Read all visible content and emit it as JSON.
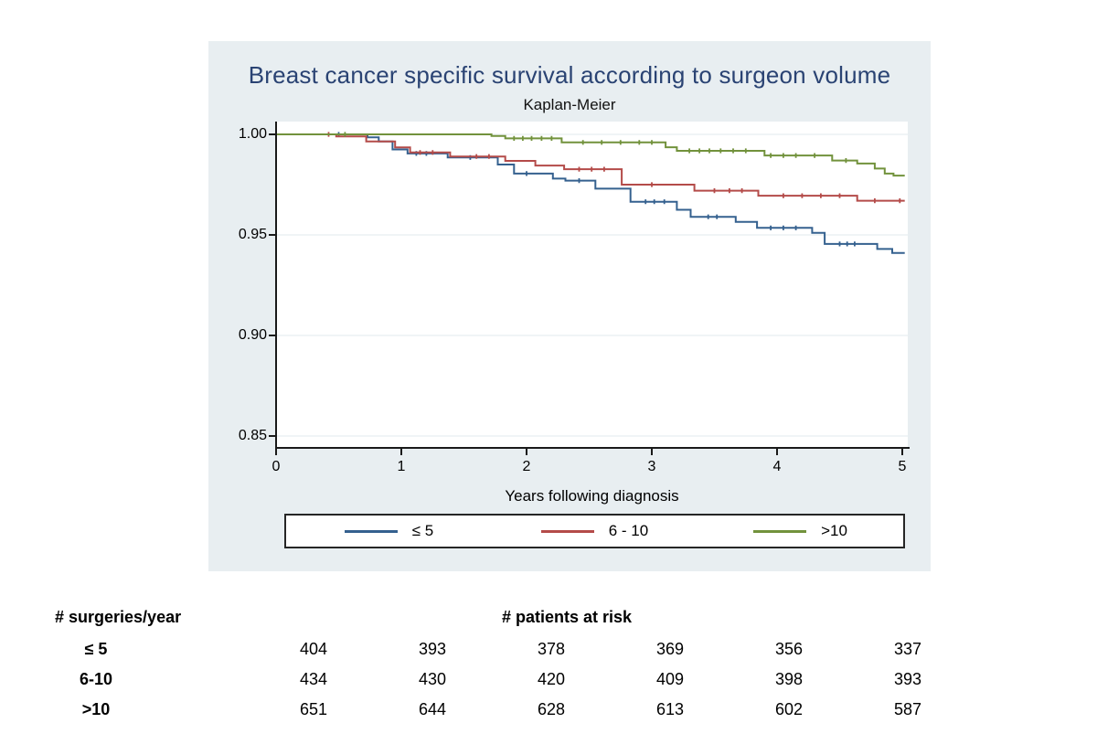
{
  "palette": {
    "page_bg": "#ffffff",
    "panel_bg": "#e8eef1",
    "plot_bg": "#ffffff",
    "grid_color": "#e2eaec",
    "axis_color": "#1a1a1a",
    "title_color": "#2a4373",
    "legend_border": "#262626"
  },
  "chart_data": {
    "type": "line",
    "subtype": "kaplan-meier-step",
    "title": "Breast cancer specific survival according to surgeon volume",
    "subtitle": "Kaplan-Meier",
    "xlabel": "Years following diagnosis",
    "ylabel": "",
    "xlim": [
      0,
      5.05
    ],
    "ylim": [
      0.85,
      1.005
    ],
    "grid": true,
    "legend_position": "bottom",
    "x_ticks": [
      0,
      1,
      2,
      3,
      4,
      5
    ],
    "x_tick_labels": [
      "0",
      "1",
      "2",
      "3",
      "4",
      "5"
    ],
    "y_ticks": [
      1.0,
      0.95,
      0.9,
      0.85
    ],
    "y_tick_labels": [
      "1.00",
      "0.95",
      "0.90",
      "0.85"
    ],
    "series": [
      {
        "name": "≤ 5",
        "color": "#35618f",
        "points": [
          [
            0,
            1.0
          ],
          [
            0.73,
            0.9985
          ],
          [
            0.82,
            0.9965
          ],
          [
            0.93,
            0.9925
          ],
          [
            1.05,
            0.9905
          ],
          [
            1.37,
            0.9885
          ],
          [
            1.77,
            0.985
          ],
          [
            1.9,
            0.9805
          ],
          [
            2.21,
            0.978
          ],
          [
            2.31,
            0.977
          ],
          [
            2.55,
            0.973
          ],
          [
            2.83,
            0.9665
          ],
          [
            3.2,
            0.9625
          ],
          [
            3.31,
            0.959
          ],
          [
            3.67,
            0.9565
          ],
          [
            3.84,
            0.9535
          ],
          [
            4.28,
            0.951
          ],
          [
            4.38,
            0.9455
          ],
          [
            4.8,
            0.943
          ],
          [
            4.92,
            0.941
          ],
          [
            5.02,
            0.941
          ]
        ],
        "censor_times": [
          0.5,
          1.12,
          1.2,
          1.55,
          2.0,
          2.42,
          2.95,
          3.02,
          3.1,
          3.45,
          3.52,
          3.95,
          4.05,
          4.15,
          4.5,
          4.56,
          4.62
        ]
      },
      {
        "name": "6 - 10",
        "color": "#b44b49",
        "points": [
          [
            0,
            1.0
          ],
          [
            0.48,
            0.999
          ],
          [
            0.72,
            0.9965
          ],
          [
            0.95,
            0.9935
          ],
          [
            1.07,
            0.991
          ],
          [
            1.39,
            0.989
          ],
          [
            1.83,
            0.9868
          ],
          [
            2.07,
            0.9845
          ],
          [
            2.3,
            0.9827
          ],
          [
            2.76,
            0.975
          ],
          [
            3.34,
            0.972
          ],
          [
            3.85,
            0.9695
          ],
          [
            4.64,
            0.967
          ],
          [
            5.02,
            0.967
          ]
        ],
        "censor_times": [
          0.42,
          1.15,
          1.25,
          1.6,
          1.7,
          2.42,
          2.52,
          2.62,
          3.0,
          3.5,
          3.62,
          3.72,
          4.05,
          4.2,
          4.35,
          4.5,
          4.78,
          4.98
        ]
      },
      {
        "name": ">10",
        "color": "#72923c",
        "points": [
          [
            0,
            1.0
          ],
          [
            1.72,
            0.9992
          ],
          [
            1.83,
            0.998
          ],
          [
            2.28,
            0.996
          ],
          [
            3.11,
            0.9936
          ],
          [
            3.2,
            0.9918
          ],
          [
            3.9,
            0.9895
          ],
          [
            4.44,
            0.987
          ],
          [
            4.64,
            0.9855
          ],
          [
            4.78,
            0.983
          ],
          [
            4.86,
            0.9805
          ],
          [
            4.93,
            0.9795
          ],
          [
            5.02,
            0.9795
          ]
        ],
        "censor_times": [
          0.55,
          1.9,
          1.97,
          2.04,
          2.12,
          2.2,
          2.45,
          2.6,
          2.75,
          2.9,
          3.0,
          3.3,
          3.38,
          3.46,
          3.55,
          3.65,
          3.75,
          3.95,
          4.05,
          4.15,
          4.3,
          4.55
        ]
      }
    ]
  },
  "risk_table": {
    "row_header": "# surgeries/year",
    "col_header": "# patients at risk",
    "rows": [
      {
        "label": "≤ 5",
        "values": [
          "404",
          "393",
          "378",
          "369",
          "356",
          "337"
        ]
      },
      {
        "label": "6-10",
        "values": [
          "434",
          "430",
          "420",
          "409",
          "398",
          "393"
        ]
      },
      {
        "label": ">10",
        "values": [
          "651",
          "644",
          "628",
          "613",
          "602",
          "587"
        ]
      }
    ]
  }
}
